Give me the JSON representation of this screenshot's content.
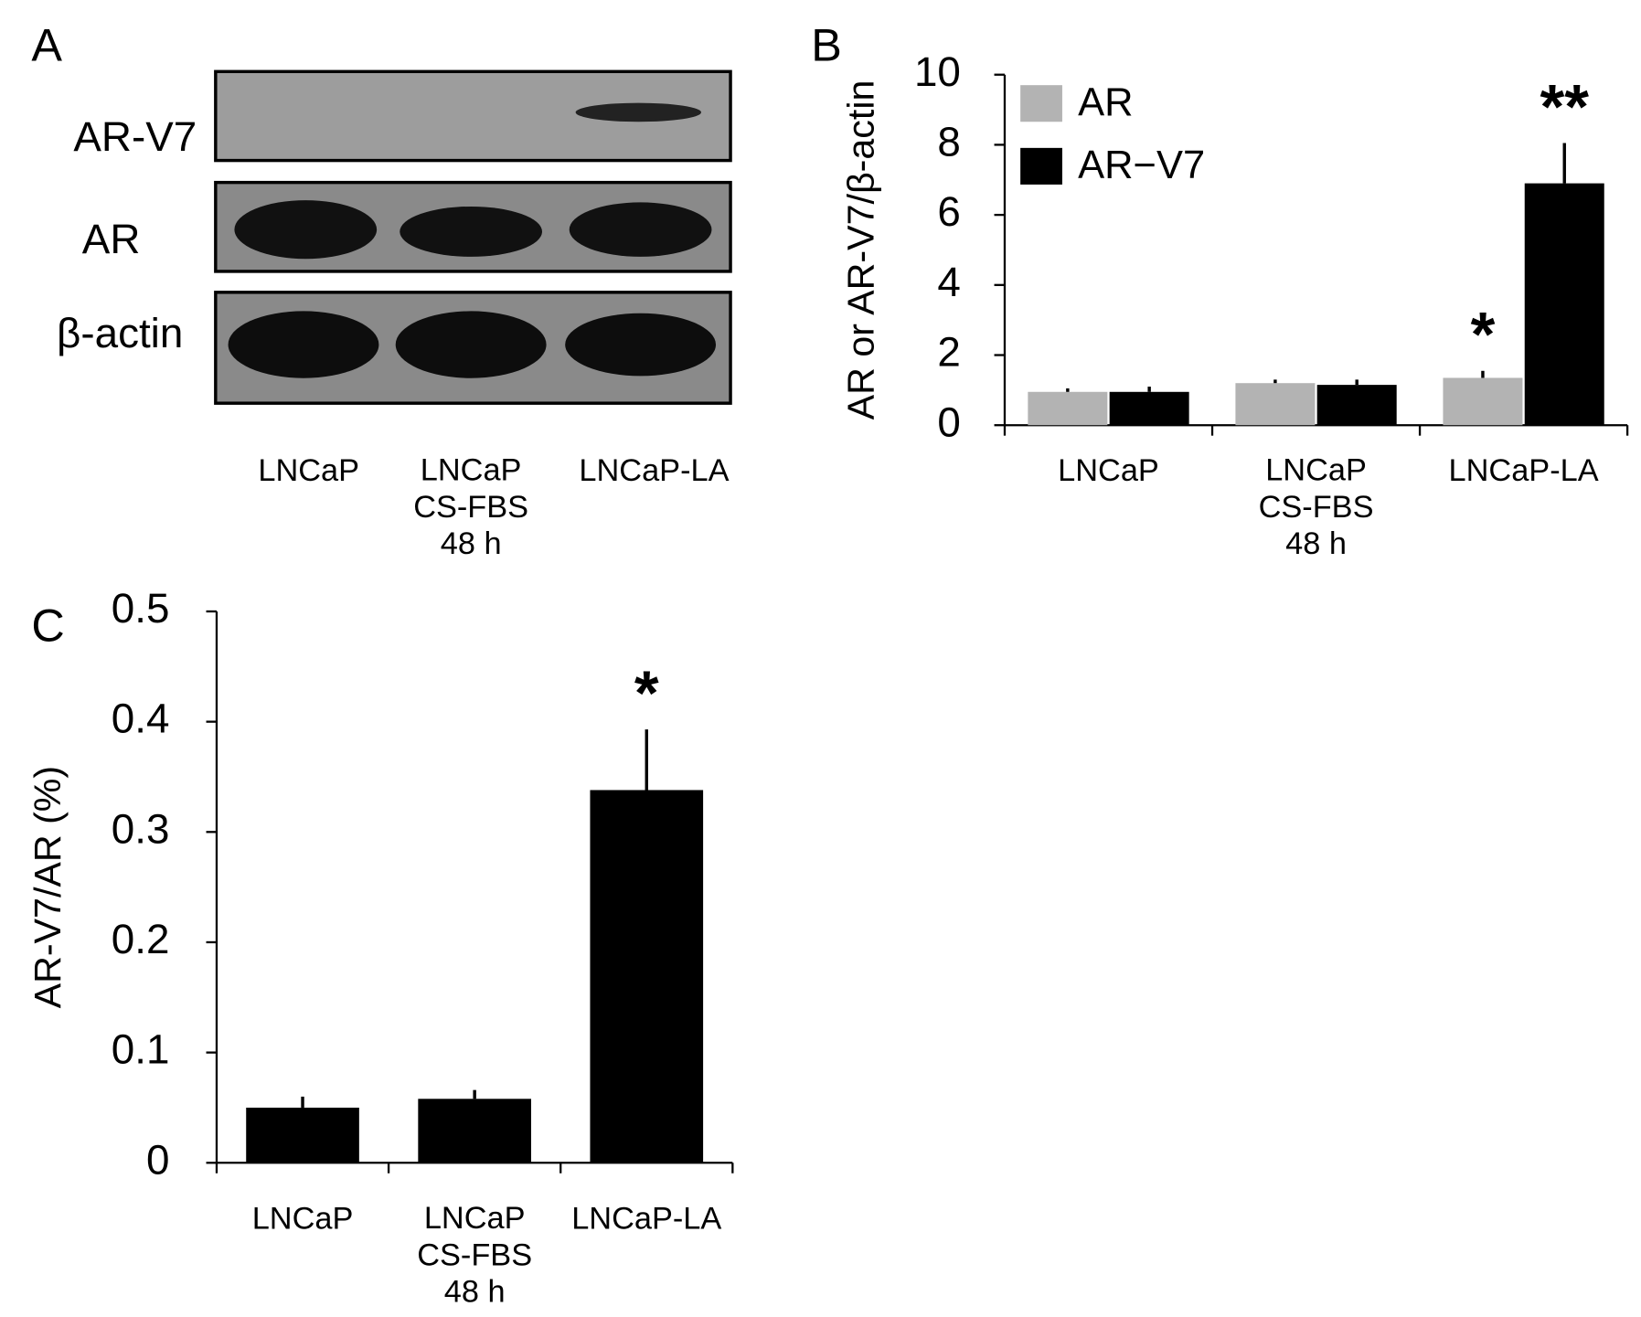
{
  "blot": {
    "panel": "A",
    "rows": [
      "AR-V7",
      "AR",
      "β-actin"
    ],
    "lanes": [
      "LNCaP",
      "LNCaP\nCS-FBS\n48 h",
      "LNCaP-LA"
    ]
  },
  "chart_data": [
    {
      "type": "bar",
      "panel": "B",
      "y_label": "AR or AR-V7/β-actin",
      "categories": [
        "LNCaP",
        "LNCaP\nCS-FBS\n48 h",
        "LNCaP-LA"
      ],
      "series": [
        {
          "name": "AR",
          "color": "#b3b3b3",
          "values": [
            0.95,
            1.2,
            1.35
          ],
          "errors": [
            0.1,
            0.1,
            0.2
          ]
        },
        {
          "name": "AR−V7",
          "color": "#000000",
          "values": [
            0.95,
            1.15,
            6.9
          ],
          "errors": [
            0.15,
            0.15,
            1.15
          ]
        }
      ],
      "annotations": [
        "*",
        "**"
      ],
      "ylim": [
        0,
        10
      ],
      "yticks": [
        0,
        2,
        4,
        6,
        8,
        10
      ],
      "legend": "upper-left"
    },
    {
      "type": "bar",
      "panel": "C",
      "y_label": "AR-V7/AR (%)",
      "categories": [
        "LNCaP",
        "LNCaP\nCS-FBS\n48 h",
        "LNCaP-LA"
      ],
      "color": "#000000",
      "values": [
        0.05,
        0.058,
        0.338
      ],
      "errors": [
        0.01,
        0.008,
        0.055
      ],
      "annotations": [
        "*"
      ],
      "ylim": [
        0,
        0.5
      ],
      "yticks": [
        0,
        0.1,
        0.2,
        0.3,
        0.4,
        0.5
      ]
    }
  ]
}
